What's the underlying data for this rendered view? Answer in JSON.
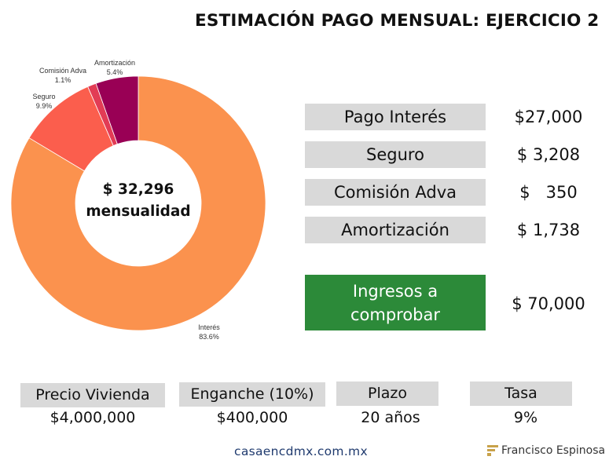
{
  "title": "ESTIMACIÓN PAGO MENSUAL: EJERCICIO 2",
  "chart_data": {
    "type": "pie",
    "variant": "donut",
    "center_text": [
      "$ 32,296",
      "mensualidad"
    ],
    "slices": [
      {
        "name": "Interés",
        "percent": 83.6,
        "percent_label": "83.6%",
        "color": "#fb924e"
      },
      {
        "name": "Seguro",
        "percent": 9.9,
        "percent_label": "9.9%",
        "color": "#fb5e4d"
      },
      {
        "name": "Comisión Adva",
        "percent": 1.1,
        "percent_label": "1.1%",
        "color": "#e23c55"
      },
      {
        "name": "Amortización",
        "percent": 5.4,
        "percent_label": "5.4%",
        "color": "#990055"
      }
    ],
    "start_order_clockwise_from_top": [
      "Interés",
      "Seguro",
      "Comisión Adva",
      "Amortización"
    ]
  },
  "breakdown": [
    {
      "label": "Pago Interés",
      "value": "$27,000"
    },
    {
      "label": "Seguro",
      "value": "$ 3,208"
    },
    {
      "label": "Comisión Adva",
      "value": "$   350"
    },
    {
      "label": "Amortización",
      "value": "$ 1,738"
    }
  ],
  "income": {
    "label_line1": "Ingresos a",
    "label_line2": "comprobar",
    "value": "$ 70,000",
    "color": "#2c8a39"
  },
  "params": [
    {
      "label": "Precio Vivienda",
      "value": "$4,000,000"
    },
    {
      "label": "Enganche (10%)",
      "value": "$400,000"
    },
    {
      "label": "Plazo",
      "value": "20 años"
    },
    {
      "label": "Tasa",
      "value": "9%"
    }
  ],
  "footer": {
    "site": "casaencdmx.com.mx",
    "brand": "Francisco Espinosa"
  }
}
